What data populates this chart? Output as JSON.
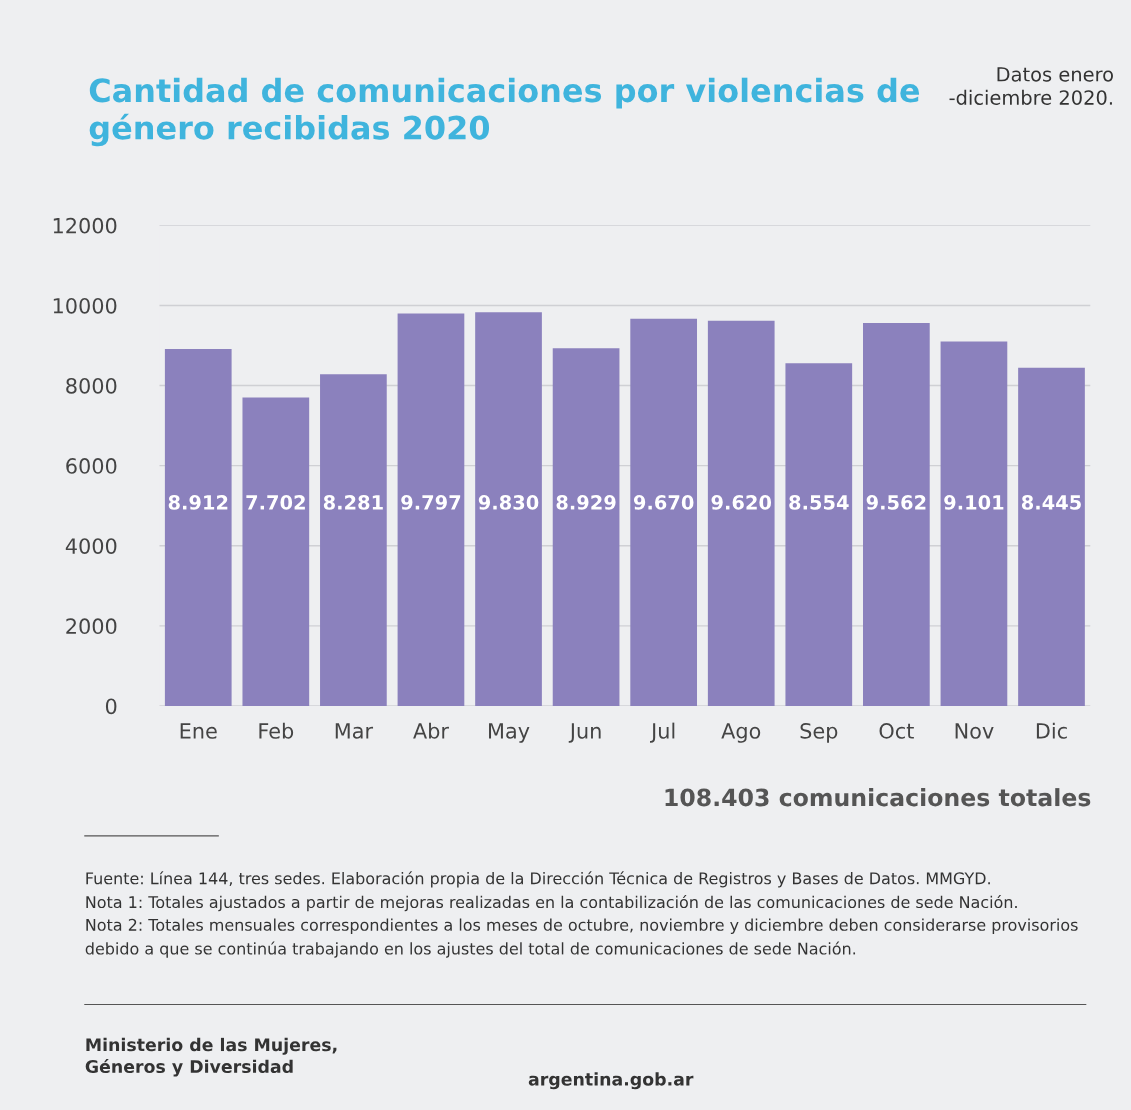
{
  "chart_data": {
    "type": "bar",
    "title": "Cantidad de comunicaciones por violencias de\ngénero recibidas 2020",
    "categories": [
      "Ene",
      "Feb",
      "Mar",
      "Abr",
      "May",
      "Jun",
      "Jul",
      "Ago",
      "Sep",
      "Oct",
      "Nov",
      "Dic"
    ],
    "values": [
      8912,
      7702,
      8281,
      9797,
      9830,
      8929,
      9670,
      9620,
      8554,
      9562,
      9101,
      8445
    ],
    "value_labels": [
      "8.912",
      "7.702",
      "8.281",
      "9.797",
      "9.830",
      "8.929",
      "9.670",
      "9.620",
      "8.554",
      "9.562",
      "9.101",
      "8.445"
    ],
    "color": "#8b81bd",
    "ylim": [
      0,
      12000
    ],
    "yticks": [
      0,
      2000,
      4000,
      6000,
      8000,
      10000,
      12000
    ],
    "grid": "y",
    "legend": false,
    "annotations": [
      "Datos enero\n-diciembre 2020.",
      "108.403 comunicaciones totales",
      "Fuente: Línea 144, tres sedes. Elaboración propia de la Dirección Técnica de Registros y Bases de Datos. MMGYD.\nNota 1: Totales ajustados a partir de mejoras realizadas en la contabilización de las comunicaciones de sede Nación.\nNota 2: Totales mensuales correspondientes a los meses de octubre, noviembre y diciembre deben considerarse provisorios\ndebido a que se continúa trabajando en los ajustes del total de comunicaciones de sede Nación.",
      "Ministerio de las Mujeres,\nGéneros y Diversidad",
      "argentina.gob.ar"
    ]
  }
}
